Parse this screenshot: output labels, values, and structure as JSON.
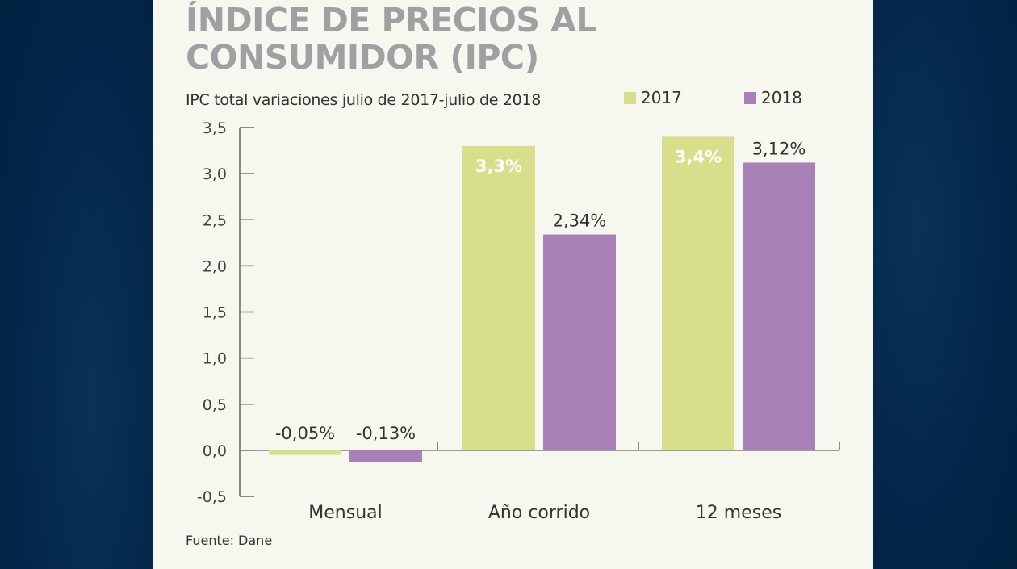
{
  "chart_data": {
    "type": "bar",
    "title": "ÍNDICE DE PRECIOS AL CONSUMIDOR (IPC)",
    "title_lines": [
      "ÍNDICE DE PRECIOS AL",
      "CONSUMIDOR (IPC)"
    ],
    "subtitle": "IPC total variaciones julio de 2017-julio de 2018",
    "categories": [
      "Mensual",
      "Año corrido",
      "12 meses"
    ],
    "series": [
      {
        "name": "2017",
        "color": "#d8df8a",
        "values": [
          -0.05,
          3.3,
          3.4
        ],
        "labels": [
          "-0,05%",
          "3,3%",
          "3,4%"
        ],
        "label_inside": [
          false,
          true,
          true
        ]
      },
      {
        "name": "2018",
        "color": "#a981b6",
        "values": [
          -0.13,
          2.34,
          3.12
        ],
        "labels": [
          "-0,13%",
          "2,34%",
          "3,12%"
        ],
        "label_inside": [
          false,
          false,
          false
        ]
      }
    ],
    "yticks": [
      "3,5",
      "3,0",
      "2,5",
      "2,0",
      "1,5",
      "1,0",
      "0,5",
      "0,0",
      "-0,5"
    ],
    "ytick_values": [
      3.5,
      3.0,
      2.5,
      2.0,
      1.5,
      1.0,
      0.5,
      0.0,
      -0.5
    ],
    "ylim": [
      -0.5,
      3.5
    ],
    "xlabel": "",
    "ylabel": "",
    "grid": false,
    "legend": "top-right",
    "source": "Fuente: Dane"
  }
}
